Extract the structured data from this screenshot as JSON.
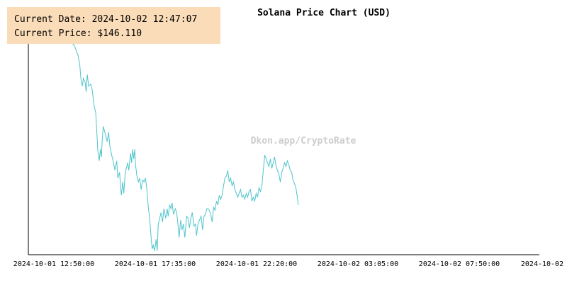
{
  "info": {
    "date_label": "Current Date:",
    "date_value": "2024-10-02 12:47:07",
    "price_label": "Current Price:",
    "price_value": "$146.110"
  },
  "watermark": "Dkon.app/CryptoRate",
  "colors": {
    "line": "#4fc4cc",
    "axis": "#000000",
    "info_bg": "#fbdcb8",
    "watermark": "#cccccc"
  },
  "chart_data": {
    "type": "line",
    "title": "Solana Price Chart (USD)",
    "xlabel": "",
    "ylabel": "",
    "grid": false,
    "x_tick_labels": [
      "2024-10-01 12:50:00",
      "2024-10-01 17:35:00",
      "2024-10-01 22:20:00",
      "2024-10-02 03:05:00",
      "2024-10-02 07:50:00",
      "2024-10-02"
    ],
    "x_range_minutes": [
      0,
      1440
    ],
    "y_range": [
      140.4,
      152.4
    ],
    "series": [
      {
        "values": [
          [
            114,
            151.5
          ],
          [
            120,
            151.5
          ],
          [
            130,
            151.3
          ],
          [
            140,
            150.8
          ],
          [
            145,
            150.3
          ],
          [
            148,
            149.6
          ],
          [
            152,
            149.2
          ],
          [
            155,
            149.6
          ],
          [
            160,
            149.4
          ],
          [
            163,
            148.9
          ],
          [
            166,
            149.8
          ],
          [
            170,
            149.2
          ],
          [
            176,
            149.3
          ],
          [
            180,
            149.0
          ],
          [
            185,
            148.2
          ],
          [
            190,
            147.8
          ],
          [
            193,
            146.8
          ],
          [
            196,
            145.8
          ],
          [
            200,
            145.3
          ],
          [
            203,
            145.9
          ],
          [
            206,
            145.5
          ],
          [
            208,
            146.3
          ],
          [
            211,
            147.1
          ],
          [
            214,
            146.9
          ],
          [
            218,
            146.6
          ],
          [
            222,
            146.3
          ],
          [
            226,
            146.8
          ],
          [
            230,
            146.0
          ],
          [
            236,
            145.5
          ],
          [
            240,
            145.2
          ],
          [
            244,
            144.8
          ],
          [
            249,
            145.3
          ],
          [
            252,
            144.4
          ],
          [
            257,
            144.7
          ],
          [
            260,
            143.9
          ],
          [
            262,
            143.5
          ],
          [
            266,
            144.2
          ],
          [
            269,
            143.6
          ],
          [
            273,
            144.7
          ],
          [
            276,
            144.9
          ],
          [
            280,
            145.2
          ],
          [
            283,
            144.8
          ],
          [
            288,
            145.7
          ],
          [
            291,
            145.2
          ],
          [
            294,
            145.9
          ],
          [
            297,
            145.4
          ],
          [
            300,
            145.9
          ],
          [
            302,
            145.1
          ],
          [
            306,
            144.5
          ],
          [
            310,
            144.2
          ],
          [
            314,
            144.4
          ],
          [
            318,
            143.8
          ],
          [
            322,
            144.3
          ],
          [
            326,
            144.2
          ],
          [
            330,
            144.4
          ],
          [
            334,
            143.8
          ],
          [
            338,
            142.9
          ],
          [
            342,
            142.3
          ],
          [
            346,
            141.3
          ],
          [
            349,
            140.7
          ],
          [
            352,
            140.9
          ],
          [
            356,
            140.6
          ],
          [
            360,
            141.2
          ],
          [
            363,
            140.6
          ],
          [
            366,
            142.0
          ],
          [
            370,
            142.3
          ],
          [
            374,
            142.6
          ],
          [
            378,
            142.1
          ],
          [
            382,
            142.8
          ],
          [
            387,
            142.3
          ],
          [
            391,
            142.8
          ],
          [
            394,
            142.4
          ],
          [
            398,
            143.0
          ],
          [
            402,
            142.8
          ],
          [
            405,
            143.1
          ],
          [
            409,
            142.5
          ],
          [
            414,
            142.8
          ],
          [
            418,
            142.6
          ],
          [
            422,
            141.9
          ],
          [
            425,
            141.3
          ],
          [
            429,
            142.2
          ],
          [
            433,
            141.7
          ],
          [
            437,
            142.0
          ],
          [
            441,
            141.3
          ],
          [
            446,
            142.4
          ],
          [
            450,
            142.3
          ],
          [
            454,
            141.8
          ],
          [
            458,
            142.3
          ],
          [
            462,
            142.6
          ],
          [
            467,
            141.9
          ],
          [
            471,
            142.0
          ],
          [
            474,
            141.4
          ],
          [
            478,
            142.0
          ],
          [
            482,
            142.2
          ],
          [
            487,
            142.4
          ],
          [
            491,
            141.7
          ],
          [
            495,
            142.4
          ],
          [
            499,
            142.5
          ],
          [
            503,
            142.8
          ],
          [
            506,
            142.8
          ],
          [
            510,
            142.7
          ],
          [
            514,
            142.5
          ],
          [
            518,
            142.1
          ],
          [
            522,
            142.9
          ],
          [
            526,
            142.7
          ],
          [
            530,
            143.2
          ],
          [
            534,
            143.0
          ],
          [
            538,
            143.5
          ],
          [
            542,
            143.3
          ],
          [
            546,
            143.5
          ],
          [
            550,
            144.0
          ],
          [
            554,
            144.4
          ],
          [
            558,
            144.5
          ],
          [
            562,
            144.8
          ],
          [
            566,
            144.2
          ],
          [
            570,
            144.4
          ],
          [
            574,
            144.0
          ],
          [
            578,
            144.2
          ],
          [
            582,
            143.8
          ],
          [
            586,
            143.6
          ],
          [
            590,
            143.4
          ],
          [
            594,
            143.6
          ],
          [
            598,
            143.8
          ],
          [
            602,
            143.4
          ],
          [
            606,
            143.5
          ],
          [
            610,
            143.3
          ],
          [
            614,
            143.6
          ],
          [
            618,
            143.4
          ],
          [
            622,
            143.7
          ],
          [
            626,
            143.8
          ],
          [
            630,
            143.2
          ],
          [
            634,
            143.4
          ],
          [
            638,
            143.2
          ],
          [
            642,
            143.6
          ],
          [
            646,
            143.4
          ],
          [
            650,
            143.9
          ],
          [
            654,
            143.7
          ],
          [
            658,
            144.0
          ],
          [
            662,
            144.8
          ],
          [
            666,
            145.6
          ],
          [
            670,
            145.4
          ],
          [
            674,
            145.2
          ],
          [
            678,
            145.0
          ],
          [
            682,
            145.4
          ],
          [
            686,
            144.9
          ],
          [
            690,
            145.2
          ],
          [
            694,
            145.5
          ],
          [
            698,
            145.0
          ],
          [
            702,
            144.8
          ],
          [
            706,
            144.6
          ],
          [
            710,
            144.2
          ],
          [
            714,
            144.7
          ],
          [
            718,
            144.9
          ],
          [
            722,
            145.2
          ],
          [
            726,
            145.0
          ],
          [
            730,
            145.3
          ],
          [
            734,
            145.1
          ],
          [
            738,
            144.8
          ],
          [
            742,
            144.7
          ],
          [
            746,
            144.3
          ],
          [
            750,
            144.1
          ],
          [
            754,
            143.9
          ],
          [
            758,
            143.4
          ],
          [
            761,
            143.0
          ]
        ]
      }
    ]
  }
}
